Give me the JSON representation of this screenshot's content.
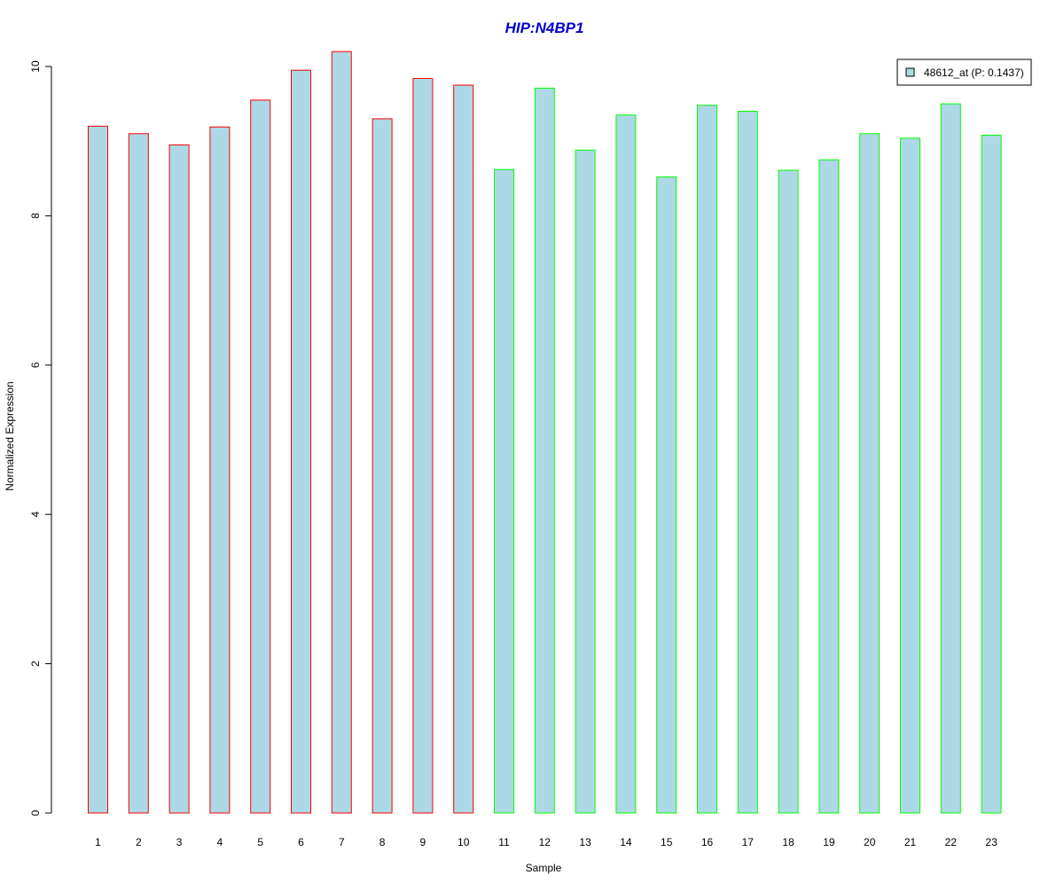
{
  "chart_data": {
    "type": "bar",
    "title": "HIP:N4BP1",
    "xlabel": "Sample",
    "ylabel": "Normalized Expression",
    "categories": [
      "1",
      "2",
      "3",
      "4",
      "5",
      "6",
      "7",
      "8",
      "9",
      "10",
      "11",
      "12",
      "13",
      "14",
      "15",
      "16",
      "17",
      "18",
      "19",
      "20",
      "21",
      "22",
      "23"
    ],
    "series": [
      {
        "name": "48612_at (P: 0.1437)",
        "values": [
          9.2,
          9.1,
          8.95,
          9.19,
          9.55,
          9.95,
          10.2,
          9.3,
          9.84,
          9.75,
          8.62,
          9.71,
          8.88,
          9.35,
          8.52,
          9.48,
          9.4,
          8.61,
          8.75,
          9.1,
          9.04,
          9.5,
          9.08
        ]
      }
    ],
    "groups": [
      {
        "samples": [
          "1",
          "2",
          "3",
          "4",
          "5",
          "6",
          "7",
          "8",
          "9",
          "10"
        ],
        "border_color": "#ff0000"
      },
      {
        "samples": [
          "11",
          "12",
          "13",
          "14",
          "15",
          "16",
          "17",
          "18",
          "19",
          "20",
          "21",
          "22",
          "23"
        ],
        "border_color": "#00ff00"
      }
    ],
    "ylim": [
      0,
      10.2
    ],
    "yticks": [
      0,
      2,
      4,
      6,
      8,
      10
    ],
    "grid": false,
    "legend_position": "top-right",
    "colors": {
      "title": "#0000cc",
      "bar_fill": "#add8e6",
      "axis": "#000000"
    }
  }
}
